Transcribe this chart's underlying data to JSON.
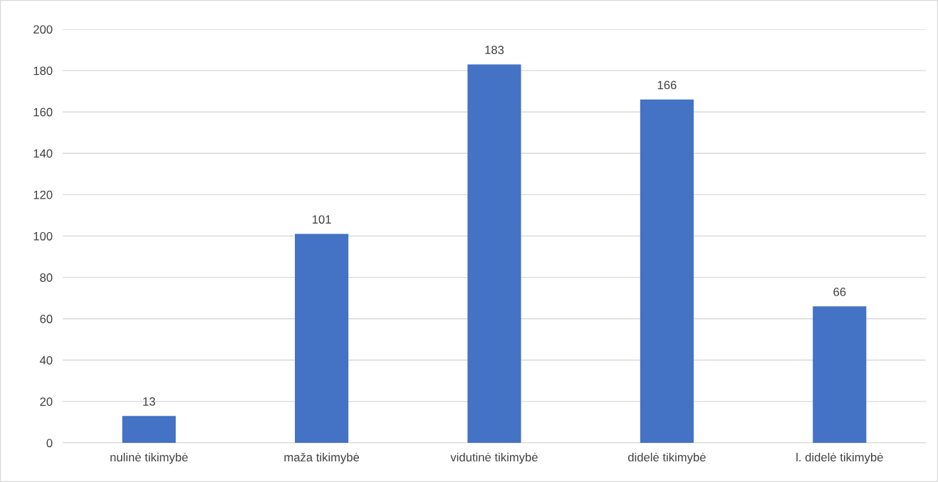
{
  "chart_data": {
    "type": "bar",
    "categories": [
      "nulinė tikimybė",
      "maža tikimybė",
      "vidutinė tikimybė",
      "didelė tikimybė",
      "l. didelė tikimybė"
    ],
    "values": [
      13,
      101,
      183,
      166,
      66
    ],
    "color": "#4472c4",
    "ylim": [
      0,
      200
    ],
    "yticks": [
      0,
      20,
      40,
      60,
      80,
      100,
      120,
      140,
      160,
      180,
      200
    ],
    "grid": "y",
    "data_labels": true
  }
}
